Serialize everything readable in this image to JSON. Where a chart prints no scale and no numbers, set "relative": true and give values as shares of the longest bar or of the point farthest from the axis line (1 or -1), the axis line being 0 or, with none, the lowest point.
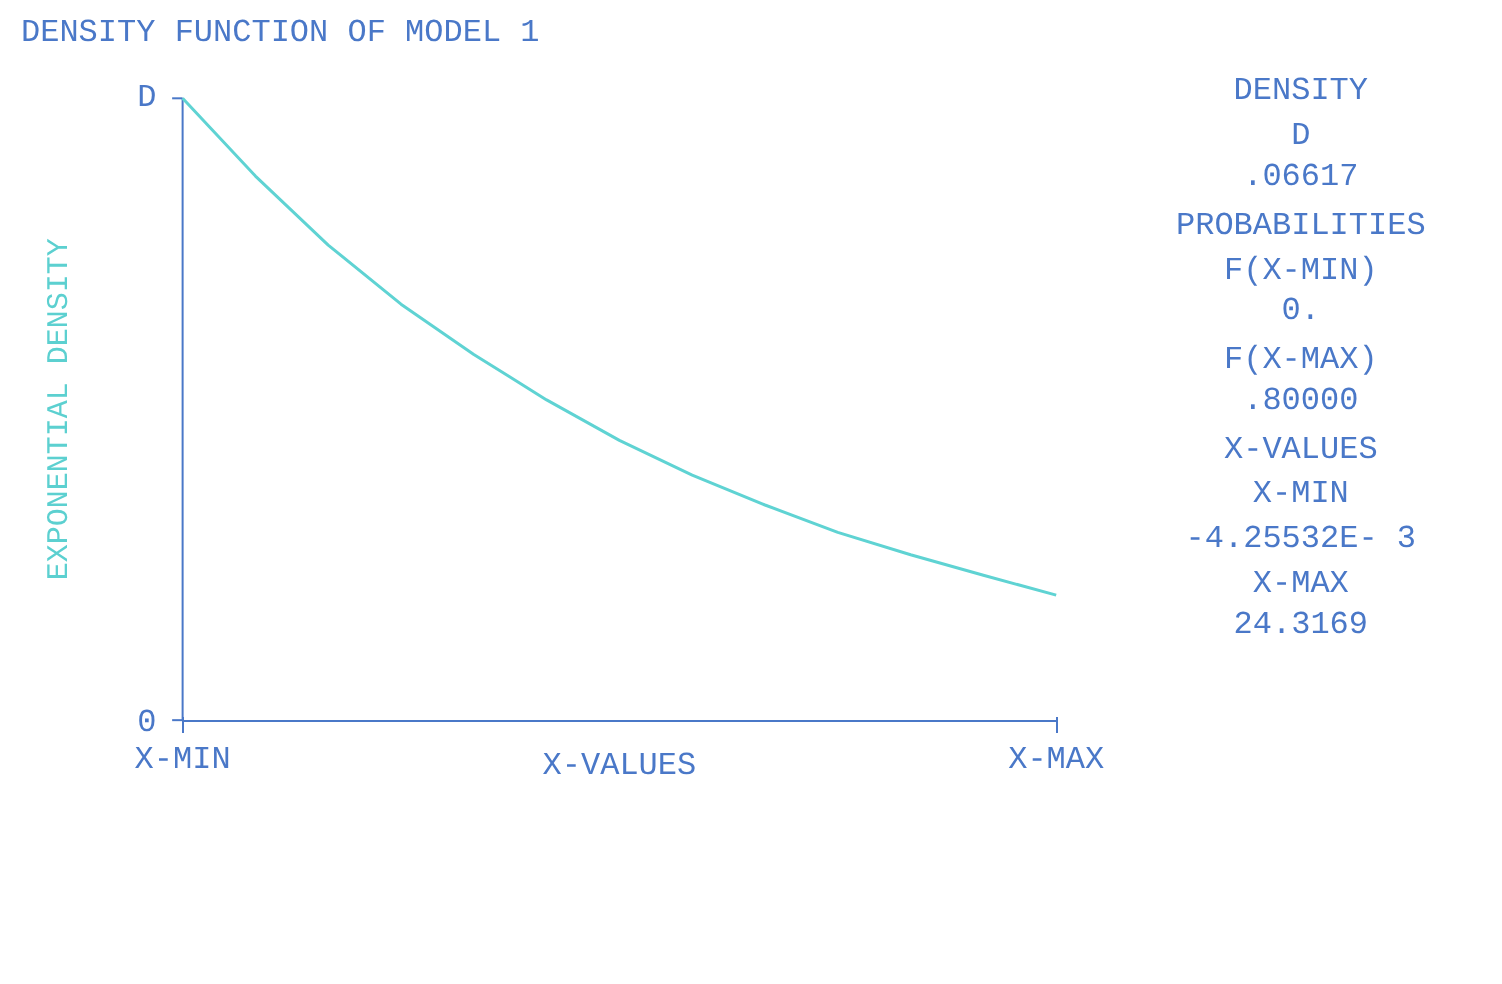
{
  "chart_data": {
    "type": "line",
    "relative": true,
    "title": "DENSITY FUNCTION OF MODEL 1",
    "xlabel": "X-VALUES",
    "ylabel": "EXPONENTIAL DENSITY",
    "categories": [
      "X-MIN",
      null,
      null,
      null,
      null,
      null,
      null,
      null,
      null,
      null,
      null,
      null,
      "X-MAX"
    ],
    "series": [
      {
        "color": "#5fd3d3",
        "values": [
          1,
          0.875,
          0.764,
          0.669,
          0.588,
          0.515,
          0.45,
          0.394,
          0.346,
          0.302,
          0.266,
          0.233,
          0.201
        ]
      }
    ],
    "annotations": [
      "0",
      "D",
      "DENSITY",
      "D",
      ".06617",
      "PROBABILITIES",
      "F(X-MIN)",
      "0.",
      "F(X-MAX)",
      ".80000",
      "X-VALUES",
      "X-MIN",
      "-4.25532E- 3",
      "X-MAX",
      "24.3169"
    ]
  }
}
